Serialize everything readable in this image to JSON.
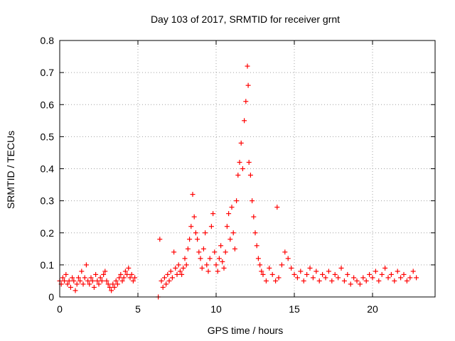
{
  "chart_data": {
    "type": "scatter",
    "title": "Day 103 of 2017, SRMTID for receiver grnt",
    "xlabel": "GPS time / hours",
    "ylabel": "SRMTID / TECUs",
    "xlim": [
      0,
      24
    ],
    "ylim": [
      0,
      0.8
    ],
    "xticks": [
      0,
      5,
      10,
      15,
      20
    ],
    "yticks": [
      0,
      0.1,
      0.2,
      0.3,
      0.4,
      0.5,
      0.6,
      0.7,
      0.8
    ],
    "xtick_labels": [
      "0",
      "5",
      "10",
      "15",
      "20"
    ],
    "ytick_labels": [
      "0",
      "0.1",
      "0.2",
      "0.3",
      "0.4",
      "0.5",
      "0.6",
      "0.7",
      "0.8"
    ],
    "grid": true,
    "marker": "+",
    "marker_color": "#ff0000",
    "series": [
      {
        "name": "SRMTID",
        "points": [
          [
            0.0,
            0.05
          ],
          [
            0.1,
            0.04
          ],
          [
            0.2,
            0.06
          ],
          [
            0.3,
            0.05
          ],
          [
            0.4,
            0.07
          ],
          [
            0.5,
            0.04
          ],
          [
            0.6,
            0.05
          ],
          [
            0.7,
            0.03
          ],
          [
            0.8,
            0.06
          ],
          [
            0.9,
            0.05
          ],
          [
            1.0,
            0.02
          ],
          [
            1.1,
            0.04
          ],
          [
            1.2,
            0.06
          ],
          [
            1.3,
            0.05
          ],
          [
            1.4,
            0.08
          ],
          [
            1.5,
            0.04
          ],
          [
            1.6,
            0.06
          ],
          [
            1.7,
            0.1
          ],
          [
            1.8,
            0.05
          ],
          [
            1.9,
            0.04
          ],
          [
            2.0,
            0.06
          ],
          [
            2.1,
            0.05
          ],
          [
            2.2,
            0.03
          ],
          [
            2.3,
            0.07
          ],
          [
            2.4,
            0.05
          ],
          [
            2.5,
            0.04
          ],
          [
            2.6,
            0.06
          ],
          [
            2.7,
            0.05
          ],
          [
            2.8,
            0.07
          ],
          [
            2.9,
            0.08
          ],
          [
            3.0,
            0.05
          ],
          [
            3.1,
            0.04
          ],
          [
            3.2,
            0.03
          ],
          [
            3.3,
            0.02
          ],
          [
            3.4,
            0.04
          ],
          [
            3.5,
            0.03
          ],
          [
            3.6,
            0.05
          ],
          [
            3.7,
            0.04
          ],
          [
            3.8,
            0.06
          ],
          [
            3.9,
            0.07
          ],
          [
            4.0,
            0.05
          ],
          [
            4.1,
            0.06
          ],
          [
            4.2,
            0.08
          ],
          [
            4.3,
            0.07
          ],
          [
            4.4,
            0.09
          ],
          [
            4.5,
            0.06
          ],
          [
            4.6,
            0.07
          ],
          [
            4.7,
            0.05
          ],
          [
            4.8,
            0.06
          ],
          [
            6.3,
            0.0
          ],
          [
            6.4,
            0.18
          ],
          [
            6.5,
            0.05
          ],
          [
            6.6,
            0.03
          ],
          [
            6.7,
            0.06
          ],
          [
            6.8,
            0.04
          ],
          [
            6.9,
            0.07
          ],
          [
            7.0,
            0.05
          ],
          [
            7.1,
            0.08
          ],
          [
            7.2,
            0.06
          ],
          [
            7.3,
            0.14
          ],
          [
            7.4,
            0.09
          ],
          [
            7.5,
            0.07
          ],
          [
            7.6,
            0.1
          ],
          [
            7.7,
            0.08
          ],
          [
            7.8,
            0.07
          ],
          [
            7.9,
            0.09
          ],
          [
            8.0,
            0.12
          ],
          [
            8.1,
            0.1
          ],
          [
            8.2,
            0.15
          ],
          [
            8.3,
            0.18
          ],
          [
            8.4,
            0.22
          ],
          [
            8.5,
            0.32
          ],
          [
            8.6,
            0.25
          ],
          [
            8.7,
            0.2
          ],
          [
            8.8,
            0.18
          ],
          [
            8.9,
            0.14
          ],
          [
            9.0,
            0.12
          ],
          [
            9.1,
            0.09
          ],
          [
            9.2,
            0.15
          ],
          [
            9.3,
            0.2
          ],
          [
            9.4,
            0.1
          ],
          [
            9.5,
            0.08
          ],
          [
            9.6,
            0.12
          ],
          [
            9.7,
            0.22
          ],
          [
            9.8,
            0.26
          ],
          [
            9.9,
            0.14
          ],
          [
            10.0,
            0.1
          ],
          [
            10.1,
            0.08
          ],
          [
            10.2,
            0.12
          ],
          [
            10.3,
            0.16
          ],
          [
            10.4,
            0.11
          ],
          [
            10.5,
            0.09
          ],
          [
            10.6,
            0.14
          ],
          [
            10.7,
            0.22
          ],
          [
            10.8,
            0.26
          ],
          [
            10.9,
            0.18
          ],
          [
            11.0,
            0.28
          ],
          [
            11.1,
            0.2
          ],
          [
            11.2,
            0.15
          ],
          [
            11.3,
            0.3
          ],
          [
            11.4,
            0.38
          ],
          [
            11.5,
            0.42
          ],
          [
            11.6,
            0.48
          ],
          [
            11.7,
            0.4
          ],
          [
            11.8,
            0.55
          ],
          [
            11.9,
            0.61
          ],
          [
            12.0,
            0.72
          ],
          [
            12.05,
            0.66
          ],
          [
            12.1,
            0.42
          ],
          [
            12.2,
            0.38
          ],
          [
            12.3,
            0.3
          ],
          [
            12.4,
            0.25
          ],
          [
            12.5,
            0.2
          ],
          [
            12.6,
            0.16
          ],
          [
            12.7,
            0.12
          ],
          [
            12.8,
            0.1
          ],
          [
            12.9,
            0.08
          ],
          [
            13.0,
            0.07
          ],
          [
            13.2,
            0.05
          ],
          [
            13.4,
            0.09
          ],
          [
            13.6,
            0.07
          ],
          [
            13.8,
            0.05
          ],
          [
            13.9,
            0.28
          ],
          [
            14.0,
            0.06
          ],
          [
            14.2,
            0.1
          ],
          [
            14.4,
            0.14
          ],
          [
            14.6,
            0.12
          ],
          [
            14.8,
            0.09
          ],
          [
            15.0,
            0.07
          ],
          [
            15.2,
            0.06
          ],
          [
            15.4,
            0.08
          ],
          [
            15.6,
            0.05
          ],
          [
            15.8,
            0.07
          ],
          [
            16.0,
            0.09
          ],
          [
            16.2,
            0.06
          ],
          [
            16.4,
            0.08
          ],
          [
            16.6,
            0.05
          ],
          [
            16.8,
            0.07
          ],
          [
            17.0,
            0.06
          ],
          [
            17.2,
            0.08
          ],
          [
            17.4,
            0.05
          ],
          [
            17.6,
            0.07
          ],
          [
            17.8,
            0.06
          ],
          [
            18.0,
            0.09
          ],
          [
            18.2,
            0.05
          ],
          [
            18.4,
            0.07
          ],
          [
            18.6,
            0.04
          ],
          [
            18.8,
            0.06
          ],
          [
            19.0,
            0.05
          ],
          [
            19.2,
            0.04
          ],
          [
            19.4,
            0.06
          ],
          [
            19.6,
            0.05
          ],
          [
            19.8,
            0.07
          ],
          [
            20.0,
            0.06
          ],
          [
            20.2,
            0.08
          ],
          [
            20.4,
            0.05
          ],
          [
            20.6,
            0.07
          ],
          [
            20.8,
            0.09
          ],
          [
            21.0,
            0.06
          ],
          [
            21.2,
            0.07
          ],
          [
            21.4,
            0.05
          ],
          [
            21.6,
            0.08
          ],
          [
            21.8,
            0.06
          ],
          [
            22.0,
            0.07
          ],
          [
            22.2,
            0.05
          ],
          [
            22.4,
            0.06
          ],
          [
            22.6,
            0.08
          ],
          [
            22.8,
            0.06
          ]
        ]
      }
    ]
  }
}
